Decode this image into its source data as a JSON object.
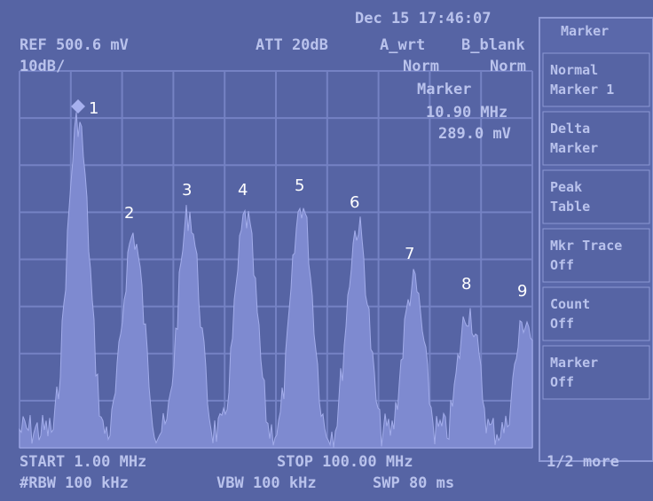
{
  "status": {
    "date": "Dec 15 17:46:07"
  },
  "header": {
    "ref": "REF 500.6 mV",
    "scale": "10dB/",
    "att": "ATT 20dB",
    "trace_a": "A_wrt",
    "trace_b": "B_blank",
    "mode_a": "Norm",
    "mode_b": "Norm"
  },
  "marker_readout": {
    "label": "Marker",
    "frequency": "10.90 MHz",
    "level": "289.0 mV"
  },
  "markers": [
    "1",
    "2",
    "3",
    "4",
    "5",
    "6",
    "7",
    "8",
    "9"
  ],
  "footer": {
    "start": "START 1.00 MHz",
    "stop": "STOP 100.00 MHz",
    "rbw": "#RBW 100 kHz",
    "vbw": "VBW 100 kHz",
    "swp": "SWP 80 ms",
    "page": "1/2 more"
  },
  "softkeys": [
    {
      "line1": "Normal",
      "line2": "Marker 1"
    },
    {
      "line1": "Delta",
      "line2": "Marker"
    },
    {
      "line1": "Peak",
      "line2": "Table"
    },
    {
      "line1": "Mkr Trace",
      "line2": "Off"
    },
    {
      "line1": "Count",
      "line2": "Off"
    },
    {
      "line1": "Marker",
      "line2": "Off"
    }
  ],
  "softkey_title": "Marker"
}
